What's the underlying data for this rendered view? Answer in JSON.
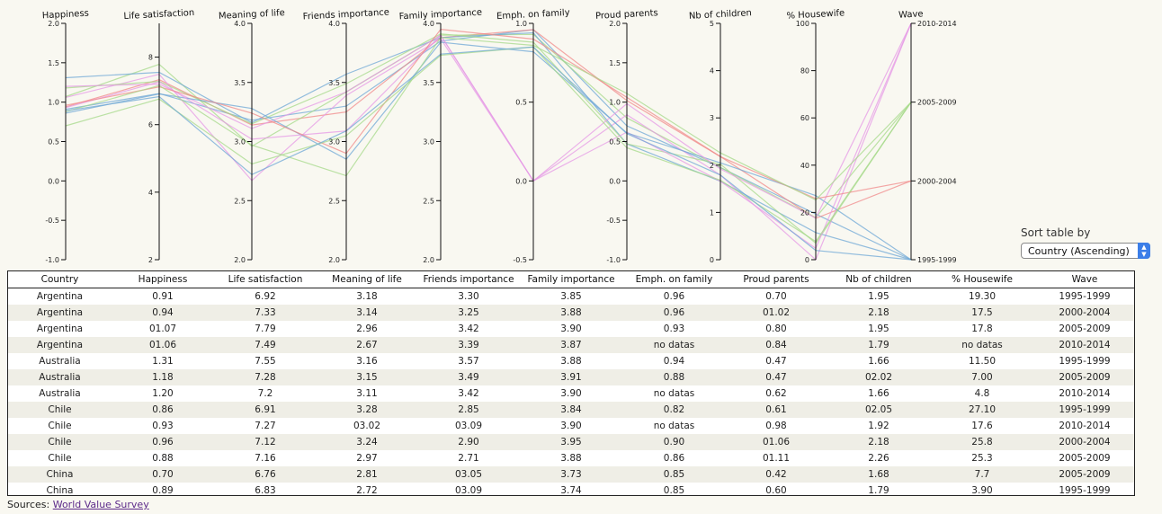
{
  "chart_data": {
    "type": "parallel_coordinates",
    "axes": [
      {
        "key": "happiness",
        "label": "Happiness",
        "domain": [
          -1.0,
          2.0
        ],
        "ticks": [
          "-1.0",
          "-0.5",
          "0.0",
          "0.5",
          "1.0",
          "1.5",
          "2.0"
        ]
      },
      {
        "key": "life_satisfaction",
        "label": "Life satisfaction",
        "domain": [
          2,
          9
        ],
        "ticks": [
          "2",
          "4",
          "6",
          "8"
        ]
      },
      {
        "key": "meaning_of_life",
        "label": "Meaning of life",
        "domain": [
          2.0,
          4.0
        ],
        "ticks": [
          "2.0",
          "2.5",
          "3.0",
          "3.5",
          "4.0"
        ]
      },
      {
        "key": "friends_importance",
        "label": "Friends importance",
        "domain": [
          2.0,
          4.0
        ],
        "ticks": [
          "2.0",
          "2.5",
          "3.0",
          "3.5",
          "4.0"
        ]
      },
      {
        "key": "family_importance",
        "label": "Family importance",
        "domain": [
          2.0,
          4.0
        ],
        "ticks": [
          "2.0",
          "2.5",
          "3.0",
          "3.5",
          "4.0"
        ]
      },
      {
        "key": "emph_on_family",
        "label": "Emph. on family",
        "domain": [
          -0.5,
          1.0
        ],
        "ticks": [
          "-0.5",
          "0.0",
          "0.5",
          "1.0"
        ]
      },
      {
        "key": "proud_parents",
        "label": "Proud parents",
        "domain": [
          -1.0,
          2.0
        ],
        "ticks": [
          "-1.0",
          "-0.5",
          "0.0",
          "0.5",
          "1.0",
          "1.5",
          "2.0"
        ]
      },
      {
        "key": "nb_children",
        "label": "Nb of children",
        "domain": [
          0,
          5
        ],
        "ticks": [
          "0",
          "1",
          "2",
          "3",
          "4",
          "5"
        ]
      },
      {
        "key": "housewife_pct",
        "label": "% Housewife",
        "domain": [
          0,
          100
        ],
        "ticks": [
          "0",
          "20",
          "40",
          "60",
          "80",
          "100"
        ]
      },
      {
        "key": "wave",
        "label": "Wave",
        "categorical": true,
        "ticks": [
          "1995-1999",
          "2000-2004",
          "2005-2009",
          "2010-2014"
        ]
      }
    ],
    "wave_colors": {
      "1995-1999": "#6fa8d6",
      "2000-2004": "#f08a8a",
      "2005-2009": "#a6d98a",
      "2010-2014": "#e59ae5"
    },
    "series": [
      {
        "country": "Argentina",
        "wave": "1995-1999",
        "values": [
          0.91,
          6.92,
          3.18,
          3.3,
          3.85,
          0.96,
          0.7,
          1.95,
          19.3
        ]
      },
      {
        "country": "Argentina",
        "wave": "2000-2004",
        "values": [
          0.94,
          7.33,
          3.14,
          3.25,
          3.88,
          0.96,
          1.02,
          2.18,
          17.5
        ]
      },
      {
        "country": "Argentina",
        "wave": "2005-2009",
        "values": [
          1.07,
          7.79,
          2.96,
          3.42,
          3.9,
          0.93,
          0.8,
          1.95,
          17.8
        ]
      },
      {
        "country": "Argentina",
        "wave": "2010-2014",
        "values": [
          1.06,
          7.49,
          2.67,
          3.39,
          3.87,
          null,
          0.84,
          1.79,
          null
        ]
      },
      {
        "country": "Australia",
        "wave": "1995-1999",
        "values": [
          1.31,
          7.55,
          3.16,
          3.57,
          3.88,
          0.94,
          0.47,
          1.66,
          11.5
        ]
      },
      {
        "country": "Australia",
        "wave": "2005-2009",
        "values": [
          1.18,
          7.28,
          3.15,
          3.49,
          3.91,
          0.88,
          0.47,
          2.02,
          7.0
        ]
      },
      {
        "country": "Australia",
        "wave": "2010-2014",
        "values": [
          1.2,
          7.2,
          3.11,
          3.42,
          3.9,
          null,
          0.62,
          1.66,
          4.8
        ]
      },
      {
        "country": "Chile",
        "wave": "1995-1999",
        "values": [
          0.86,
          6.91,
          3.28,
          2.85,
          3.84,
          0.82,
          0.61,
          2.05,
          27.1
        ]
      },
      {
        "country": "Chile",
        "wave": "2010-2014",
        "values": [
          0.93,
          7.27,
          3.02,
          3.09,
          3.9,
          null,
          0.98,
          1.92,
          17.6
        ]
      },
      {
        "country": "Chile",
        "wave": "2000-2004",
        "values": [
          0.96,
          7.12,
          3.24,
          2.9,
          3.95,
          0.9,
          1.06,
          2.18,
          25.8
        ]
      },
      {
        "country": "Chile",
        "wave": "2005-2009",
        "values": [
          0.88,
          7.16,
          2.97,
          2.71,
          3.88,
          0.86,
          1.11,
          2.26,
          25.3
        ]
      },
      {
        "country": "China",
        "wave": "2005-2009",
        "values": [
          0.7,
          6.76,
          2.81,
          3.05,
          3.73,
          0.85,
          0.42,
          1.68,
          7.7
        ]
      },
      {
        "country": "China",
        "wave": "1995-1999",
        "values": [
          0.89,
          6.83,
          2.72,
          3.09,
          3.74,
          0.85,
          0.6,
          1.79,
          3.9
        ]
      }
    ]
  },
  "sort": {
    "label": "Sort table by",
    "selected": "Country (Ascending)"
  },
  "table": {
    "headers": [
      "Country",
      "Happiness",
      "Life satisfaction",
      "Meaning of life",
      "Friends importance",
      "Family importance",
      "Emph. on family",
      "Proud parents",
      "Nb of children",
      "% Housewife",
      "Wave"
    ],
    "rows": [
      [
        "Argentina",
        "0.91",
        "6.92",
        "3.18",
        "3.30",
        "3.85",
        "0.96",
        "0.70",
        "1.95",
        "19.30",
        "1995-1999"
      ],
      [
        "Argentina",
        "0.94",
        "7.33",
        "3.14",
        "3.25",
        "3.88",
        "0.96",
        "01.02",
        "2.18",
        "17.5",
        "2000-2004"
      ],
      [
        "Argentina",
        "01.07",
        "7.79",
        "2.96",
        "3.42",
        "3.90",
        "0.93",
        "0.80",
        "1.95",
        "17.8",
        "2005-2009"
      ],
      [
        "Argentina",
        "01.06",
        "7.49",
        "2.67",
        "3.39",
        "3.87",
        "no datas",
        "0.84",
        "1.79",
        "no datas",
        "2010-2014"
      ],
      [
        "Australia",
        "1.31",
        "7.55",
        "3.16",
        "3.57",
        "3.88",
        "0.94",
        "0.47",
        "1.66",
        "11.50",
        "1995-1999"
      ],
      [
        "Australia",
        "1.18",
        "7.28",
        "3.15",
        "3.49",
        "3.91",
        "0.88",
        "0.47",
        "02.02",
        "7.00",
        "2005-2009"
      ],
      [
        "Australia",
        "1.20",
        "7.2",
        "3.11",
        "3.42",
        "3.90",
        "no datas",
        "0.62",
        "1.66",
        "4.8",
        "2010-2014"
      ],
      [
        "Chile",
        "0.86",
        "6.91",
        "3.28",
        "2.85",
        "3.84",
        "0.82",
        "0.61",
        "02.05",
        "27.10",
        "1995-1999"
      ],
      [
        "Chile",
        "0.93",
        "7.27",
        "03.02",
        "03.09",
        "3.90",
        "no datas",
        "0.98",
        "1.92",
        "17.6",
        "2010-2014"
      ],
      [
        "Chile",
        "0.96",
        "7.12",
        "3.24",
        "2.90",
        "3.95",
        "0.90",
        "01.06",
        "2.18",
        "25.8",
        "2000-2004"
      ],
      [
        "Chile",
        "0.88",
        "7.16",
        "2.97",
        "2.71",
        "3.88",
        "0.86",
        "01.11",
        "2.26",
        "25.3",
        "2005-2009"
      ],
      [
        "China",
        "0.70",
        "6.76",
        "2.81",
        "03.05",
        "3.73",
        "0.85",
        "0.42",
        "1.68",
        "7.7",
        "2005-2009"
      ],
      [
        "China",
        "0.89",
        "6.83",
        "2.72",
        "03.09",
        "3.74",
        "0.85",
        "0.60",
        "1.79",
        "3.90",
        "1995-1999"
      ]
    ]
  },
  "sources": {
    "label": "Sources:",
    "link_text": "World Value Survey"
  }
}
